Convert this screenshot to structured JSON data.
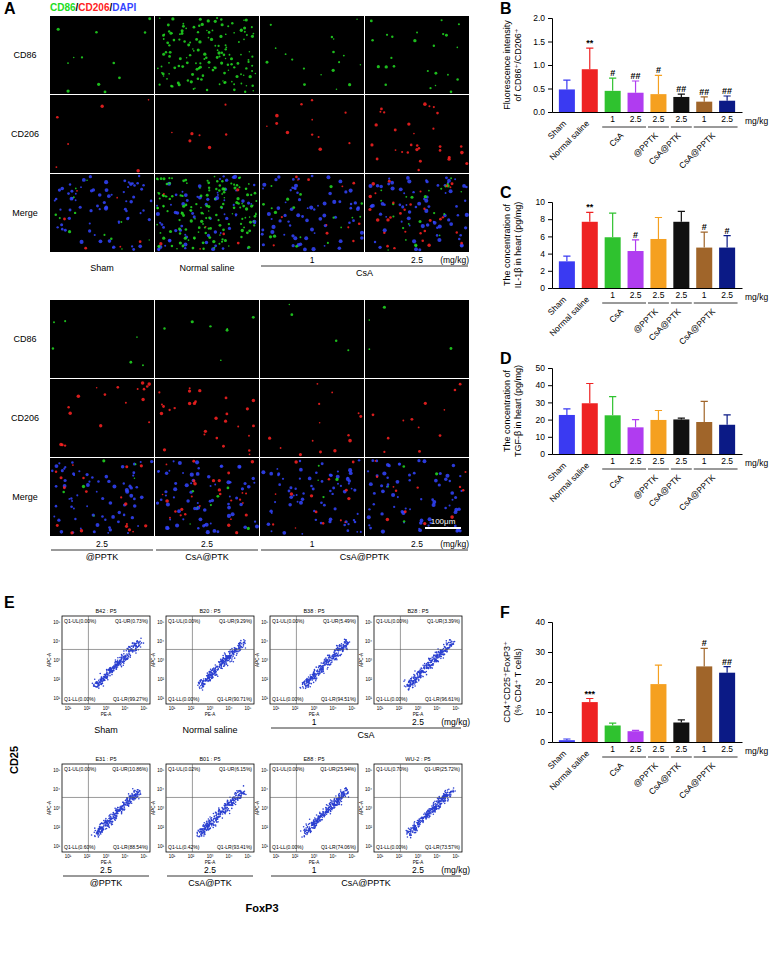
{
  "chart_data": [
    {
      "type": "bar",
      "panel_label": "B",
      "y_label": [
        "Fluorescence intensity",
        "of CD86⁺/CD206⁺"
      ],
      "categories": [
        null,
        null,
        "1",
        "2.5",
        "2.5",
        "2.5",
        "1",
        "2.5"
      ],
      "groups": [
        {
          "label": "Sham",
          "span": [
            0,
            0
          ]
        },
        {
          "label": "Normal saline",
          "span": [
            1,
            1
          ]
        },
        {
          "label": "CsA",
          "span": [
            2,
            3
          ]
        },
        {
          "label": "@PPTK",
          "span": [
            4,
            4
          ]
        },
        {
          "label": "CsA@PTK",
          "span": [
            5,
            5
          ]
        },
        {
          "label": "CsA@PPTK",
          "span": [
            6,
            7
          ]
        }
      ],
      "unit_label": "mg/kg",
      "values": [
        0.48,
        0.91,
        0.45,
        0.41,
        0.38,
        0.32,
        0.22,
        0.24
      ],
      "errors": [
        0.2,
        0.45,
        0.27,
        0.25,
        0.4,
        0.06,
        0.1,
        0.1
      ],
      "significance": [
        null,
        "**",
        "#",
        "##",
        "#",
        "##",
        "##",
        "##"
      ],
      "colors": [
        "#3a3af2",
        "#ee2222",
        "#2fc22f",
        "#b03cf0",
        "#f5a020",
        "#111111",
        "#a0652a",
        "#0b1a86"
      ],
      "ylim": [
        0,
        2
      ],
      "yticks": [
        {
          "value": 0,
          "label": "0.0"
        },
        {
          "value": 0.5,
          "label": "0.5"
        },
        {
          "value": 1,
          "label": "1.0"
        },
        {
          "value": 1.5,
          "label": "1.5"
        },
        {
          "value": 2,
          "label": "2.0"
        }
      ]
    },
    {
      "type": "bar",
      "panel_label": "C",
      "y_label": [
        "The concentration of",
        "IL-1β in heart (pg/mg)"
      ],
      "categories": [
        null,
        null,
        "1",
        "2.5",
        "2.5",
        "2.5",
        "1",
        "2.5"
      ],
      "groups": [
        {
          "label": "Sham",
          "span": [
            0,
            0
          ]
        },
        {
          "label": "Normal saline",
          "span": [
            1,
            1
          ]
        },
        {
          "label": "CsA",
          "span": [
            2,
            3
          ]
        },
        {
          "label": "@PPTK",
          "span": [
            4,
            4
          ]
        },
        {
          "label": "CsA@PTK",
          "span": [
            5,
            5
          ]
        },
        {
          "label": "CsA@PPTK",
          "span": [
            6,
            7
          ]
        }
      ],
      "unit_label": "mg/kg",
      "values": [
        3.1,
        7.7,
        5.9,
        4.3,
        5.7,
        7.7,
        4.7,
        4.7
      ],
      "errors": [
        0.6,
        1.1,
        2.8,
        1.3,
        2.5,
        1.2,
        1.8,
        1.4
      ],
      "significance": [
        null,
        "**",
        null,
        "#",
        null,
        null,
        "#",
        "#"
      ],
      "colors": [
        "#3a3af2",
        "#ee2222",
        "#2fc22f",
        "#b03cf0",
        "#f5a020",
        "#111111",
        "#a0652a",
        "#0b1a86"
      ],
      "ylim": [
        0,
        10
      ],
      "yticks": [
        0,
        2,
        4,
        6,
        8,
        10
      ]
    },
    {
      "type": "bar",
      "panel_label": "D",
      "y_label": [
        "The concentration of",
        "TGF-β in heart (pg/mg)"
      ],
      "categories": [
        null,
        null,
        "1",
        "2.5",
        "2.5",
        "2.5",
        "1",
        "2.5"
      ],
      "groups": [
        {
          "label": "Sham",
          "span": [
            0,
            0
          ]
        },
        {
          "label": "Normal saline",
          "span": [
            1,
            1
          ]
        },
        {
          "label": "CsA",
          "span": [
            2,
            3
          ]
        },
        {
          "label": "@PPTK",
          "span": [
            4,
            4
          ]
        },
        {
          "label": "CsA@PTK",
          "span": [
            5,
            5
          ]
        },
        {
          "label": "CsA@PPTK",
          "span": [
            6,
            7
          ]
        }
      ],
      "unit_label": "mg/kg",
      "values": [
        22.7,
        29.5,
        22.5,
        15.5,
        19.8,
        20.1,
        18.6,
        17.0
      ],
      "errors": [
        3.5,
        11.5,
        10.8,
        4.5,
        5.5,
        0.7,
        12,
        5.8
      ],
      "significance": [
        null,
        null,
        null,
        null,
        null,
        null,
        null,
        null
      ],
      "colors": [
        "#3a3af2",
        "#ee2222",
        "#2fc22f",
        "#b03cf0",
        "#f5a020",
        "#111111",
        "#a0652a",
        "#0b1a86"
      ],
      "ylim": [
        0,
        50
      ],
      "yticks": [
        0,
        10,
        20,
        30,
        40,
        50
      ]
    },
    {
      "type": "bar",
      "panel_label": "F",
      "y_label": [
        "CD4⁺CD25⁺FoxP3⁺",
        "(% CD4⁺ T cells)"
      ],
      "categories": [
        null,
        null,
        "1",
        "2.5",
        "2.5",
        "2.5",
        "1",
        "2.5"
      ],
      "groups": [
        {
          "label": "Sham",
          "span": [
            0,
            0
          ]
        },
        {
          "label": "Normal saline",
          "span": [
            1,
            1
          ]
        },
        {
          "label": "CsA",
          "span": [
            2,
            3
          ]
        },
        {
          "label": "@PPTK",
          "span": [
            4,
            4
          ]
        },
        {
          "label": "CsA@PTK",
          "span": [
            5,
            5
          ]
        },
        {
          "label": "CsA@PPTK",
          "span": [
            6,
            7
          ]
        }
      ],
      "unit_label": "mg/kg",
      "values": [
        0.6,
        13.3,
        5.5,
        3.6,
        19.3,
        6.5,
        25.2,
        23.1
      ],
      "errors": [
        0.4,
        1.2,
        0.8,
        0.3,
        6.3,
        0.9,
        6.0,
        2.0
      ],
      "significance": [
        null,
        "***",
        null,
        null,
        null,
        null,
        "#",
        "##"
      ],
      "colors": [
        "#3a3af2",
        "#ee2222",
        "#2fc22f",
        "#b03cf0",
        "#f5a020",
        "#111111",
        "#a0652a",
        "#0b1a86"
      ],
      "ylim": [
        0,
        40
      ],
      "yticks": [
        0,
        10,
        20,
        30,
        40
      ]
    }
  ],
  "panel_a": {
    "panel_label": "A",
    "stains": [
      {
        "text": "CD86",
        "color": "#22dd22"
      },
      {
        "text": "CD206",
        "color": "#ff2222"
      },
      {
        "text": "DAPI",
        "color": "#3344ff"
      }
    ],
    "stain_separator": "/",
    "row_labels": [
      "CD86",
      "CD206",
      "Merge"
    ],
    "unit_label": "(mg/kg)",
    "scale_bar": "100μm",
    "blocks": [
      {
        "doses": [
          null,
          null,
          "1",
          "2.5"
        ],
        "groups": [
          {
            "label": "Sham",
            "span": [
              0,
              0
            ]
          },
          {
            "label": "Normal saline",
            "span": [
              1,
              1
            ]
          },
          {
            "label": "CsA",
            "span": [
              2,
              3
            ]
          }
        ]
      },
      {
        "doses": [
          "2.5",
          "2.5",
          "1",
          "2.5"
        ],
        "groups": [
          {
            "label": "@PPTK",
            "span": [
              0,
              0
            ]
          },
          {
            "label": "CsA@PTK",
            "span": [
              1,
              1
            ]
          },
          {
            "label": "CsA@PPTK",
            "span": [
              2,
              3
            ]
          }
        ]
      }
    ]
  },
  "panel_e": {
    "panel_label": "E",
    "y_label": "CD25",
    "x_label": "FoxP3",
    "plot_x_label": "PE-A",
    "plot_y_label": "APC-A",
    "plot_ticks": [
      "10¹",
      "10²",
      "10³",
      "10⁴",
      "10⁵"
    ],
    "unit_label": "(mg/kg)",
    "blocks": [
      {
        "doses": [
          null,
          null,
          "1",
          "2.5"
        ],
        "groups": [
          {
            "label": "Sham",
            "span": [
              0,
              0
            ]
          },
          {
            "label": "Normal saline",
            "span": [
              1,
              1
            ]
          },
          {
            "label": "CsA",
            "span": [
              2,
              3
            ]
          }
        ],
        "plots": [
          {
            "title": "B42 : P5",
            "quadrants": [
              "Q1-UL(0.00%)",
              "Q1-UR(0.73%)",
              "Q1-LL(0.00%)",
              "Q1-LR(99.27%)"
            ]
          },
          {
            "title": "B20 : P5",
            "quadrants": [
              "Q1-UL(0.00%)",
              "Q1-UR(9.29%)",
              "Q1-LL(0.00%)",
              "Q1-LR(90.71%)"
            ]
          },
          {
            "title": "B38 : P5",
            "quadrants": [
              "Q1-UL(0.00%)",
              "Q1-UR(5.49%)",
              "Q1-LL(0.00%)",
              "Q1-LR(94.51%)"
            ]
          },
          {
            "title": "B28 : P5",
            "quadrants": [
              "Q1-UL(0.00%)",
              "Q1-UR(3.39%)",
              "Q1-LL(0.00%)",
              "Q1-LR(96.61%)"
            ]
          }
        ]
      },
      {
        "doses": [
          "2.5",
          "2.5",
          "1",
          "2.5"
        ],
        "groups": [
          {
            "label": "@PPTK",
            "span": [
              0,
              0
            ]
          },
          {
            "label": "CsA@PTK",
            "span": [
              1,
              1
            ]
          },
          {
            "label": "CsA@PPTK",
            "span": [
              2,
              3
            ]
          }
        ],
        "plots": [
          {
            "title": "E31 : P5",
            "quadrants": [
              "Q1-UL(0.00%)",
              "Q1-UR(10.86%)",
              "Q1-LL(0.60%)",
              "Q1-LR(88.54%)"
            ]
          },
          {
            "title": "B01 : P5",
            "quadrants": [
              "Q1-UL(0.02%)",
              "Q1-UR(6.15%)",
              "Q1-LL(0.42%)",
              "Q1-LR(93.41%)"
            ]
          },
          {
            "title": "E88 : P5",
            "quadrants": [
              "Q1-UL(0.00%)",
              "Q1-UR(25.94%)",
              "Q1-LL(0.00%)",
              "Q1-LR(74.06%)"
            ]
          },
          {
            "title": "WU-2 : P5",
            "quadrants": [
              "Q1-UL(0.70%)",
              "Q1-UR(25.72%)",
              "Q1-LL(0.00%)",
              "Q1-LR(73.57%)"
            ]
          }
        ]
      }
    ]
  }
}
